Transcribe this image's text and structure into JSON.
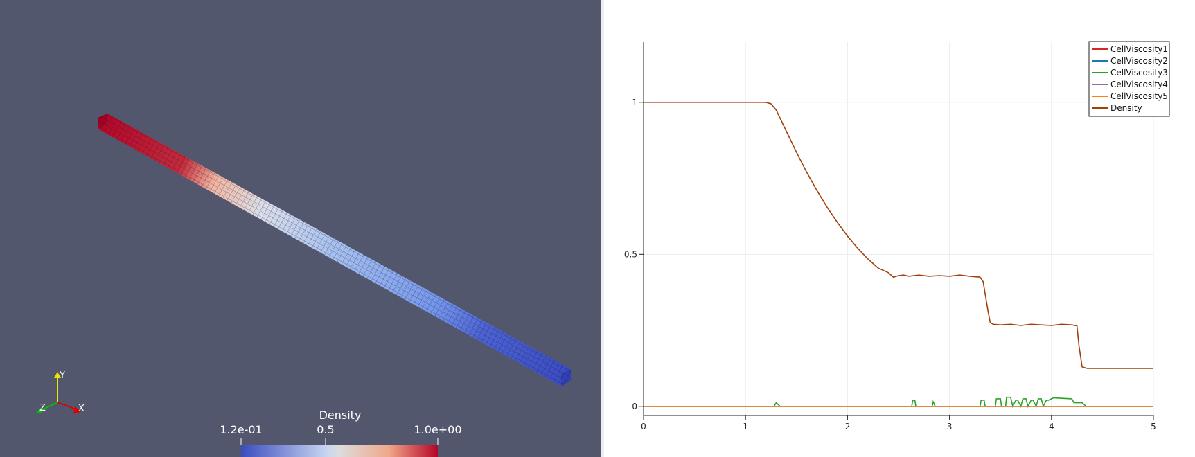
{
  "render_view": {
    "background": "#52576e",
    "colormap": [
      "#3b4cc0",
      "#dddddd",
      "#b40426"
    ],
    "colorbar": {
      "title": "Density",
      "ticks": [
        "1.2e-01",
        "0.5",
        "1.0e+00"
      ]
    },
    "orientation_axes": {
      "x": "X",
      "y": "Y",
      "z": "Z"
    }
  },
  "chart_data": {
    "type": "line",
    "xlim": [
      0,
      5
    ],
    "ylim": [
      -0.03,
      1.2
    ],
    "x_ticks": [
      "0",
      "1",
      "2",
      "3",
      "4",
      "5"
    ],
    "y_ticks": [
      "0",
      "0.5",
      "1"
    ],
    "grid": true,
    "legend_position": "top-right",
    "legend": [
      "CellViscosity1",
      "CellViscosity2",
      "CellViscosity3",
      "CellViscosity4",
      "CellViscosity5",
      "Density"
    ],
    "series": [
      {
        "name": "CellViscosity1",
        "color": "#d62728",
        "x": [
          0,
          5
        ],
        "y": [
          0,
          0
        ]
      },
      {
        "name": "CellViscosity2",
        "color": "#1f77b4",
        "x": [
          0,
          5
        ],
        "y": [
          0,
          0
        ]
      },
      {
        "name": "CellViscosity3",
        "color": "#2ca02c",
        "x": [
          0,
          1.28,
          1.3,
          1.32,
          1.34,
          2.63,
          2.64,
          2.66,
          2.67,
          2.83,
          2.84,
          2.86,
          3.3,
          3.31,
          3.34,
          3.35,
          3.45,
          3.46,
          3.5,
          3.51,
          3.55,
          3.56,
          3.6,
          3.62,
          3.65,
          3.67,
          3.7,
          3.72,
          3.75,
          3.77,
          3.8,
          3.82,
          3.85,
          3.87,
          3.9,
          3.92,
          3.95,
          3.97,
          4.0,
          4.02,
          4.2,
          4.22,
          4.3,
          4.32,
          4.34,
          5
        ],
        "y": [
          0,
          0,
          0.012,
          0.006,
          0,
          0,
          0.02,
          0.02,
          0,
          0,
          0.015,
          0,
          0,
          0.02,
          0.02,
          0,
          0,
          0.025,
          0.025,
          0,
          0,
          0.03,
          0.03,
          0,
          0.02,
          0.02,
          0,
          0.025,
          0.025,
          0,
          0.02,
          0.02,
          0,
          0.025,
          0.025,
          0,
          0.02,
          0.02,
          0.025,
          0.028,
          0.025,
          0.012,
          0.012,
          0.006,
          0,
          0
        ]
      },
      {
        "name": "CellViscosity4",
        "color": "#9467bd",
        "x": [
          0,
          5
        ],
        "y": [
          0,
          0
        ]
      },
      {
        "name": "CellViscosity5",
        "color": "#ff7f0e",
        "x": [
          0,
          5
        ],
        "y": [
          0,
          0
        ]
      },
      {
        "name": "Density",
        "color": "#a0400a",
        "x": [
          0,
          1.2,
          1.25,
          1.3,
          1.35,
          1.4,
          1.5,
          1.6,
          1.7,
          1.8,
          1.9,
          2.0,
          2.1,
          2.2,
          2.3,
          2.4,
          2.45,
          2.5,
          2.55,
          2.6,
          2.7,
          2.8,
          2.9,
          3.0,
          3.1,
          3.2,
          3.3,
          3.33,
          3.35,
          3.38,
          3.4,
          3.43,
          3.5,
          3.6,
          3.7,
          3.8,
          3.9,
          4.0,
          4.1,
          4.2,
          4.25,
          4.27,
          4.3,
          4.35,
          5
        ],
        "y": [
          1.0,
          1.0,
          0.995,
          0.975,
          0.94,
          0.905,
          0.835,
          0.77,
          0.71,
          0.655,
          0.605,
          0.56,
          0.52,
          0.485,
          0.455,
          0.44,
          0.425,
          0.43,
          0.432,
          0.428,
          0.432,
          0.428,
          0.43,
          0.428,
          0.432,
          0.428,
          0.425,
          0.41,
          0.37,
          0.31,
          0.275,
          0.27,
          0.268,
          0.27,
          0.266,
          0.27,
          0.268,
          0.266,
          0.27,
          0.268,
          0.265,
          0.2,
          0.13,
          0.125,
          0.125
        ]
      }
    ]
  }
}
